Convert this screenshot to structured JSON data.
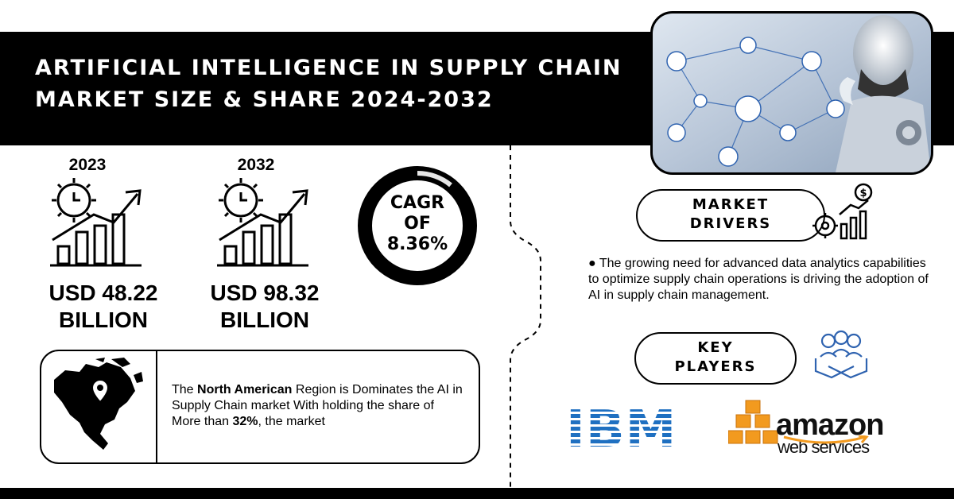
{
  "header": {
    "title_line1": "ARTIFICIAL INTELLIGENCE IN SUPPLY CHAIN",
    "title_line2": "MARKET SIZE & SHARE 2024-2032"
  },
  "stats": {
    "base_year": "2023",
    "base_value_line1": "USD 48.22",
    "base_value_line2": "BILLION",
    "forecast_year": "2032",
    "forecast_value_line1": "USD 98.32",
    "forecast_value_line2": "BILLION",
    "cagr_line1": "CAGR",
    "cagr_line2": "OF",
    "cagr_line3": "8.36%"
  },
  "drivers": {
    "label_line1": "MARKET",
    "label_line2": "DRIVERS",
    "text": "● The growing need for advanced data analytics capabilities to optimize supply chain operations is driving the adoption of AI in supply chain management."
  },
  "players": {
    "label_line1": "KEY",
    "label_line2": "PLAYERS",
    "ibm": "IBM",
    "amazon": "amazon",
    "amazon_sub": "web services"
  },
  "region": {
    "text_a": "The ",
    "highlight": "North American",
    "text_b": " Region is Dominates the AI in Supply Chain market With holding the share of More than ",
    "share": "32%",
    "text_c": ", the market"
  },
  "colors": {
    "ibm_blue": "#1f70c1",
    "aws_orange": "#f29a1f",
    "band": "#000000"
  },
  "icons": [
    "gear-clock-chart-icon",
    "dollar-gear-chart-icon",
    "handshake-people-icon",
    "north-america-map-icon",
    "location-pin-icon"
  ]
}
